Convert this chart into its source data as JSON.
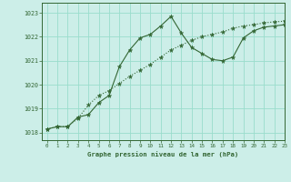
{
  "xlabel": "Graphe pression niveau de la mer (hPa)",
  "background_color": "#cceee8",
  "grid_color": "#99ddcc",
  "line_color": "#336633",
  "ylim": [
    1017.7,
    1023.4
  ],
  "xlim": [
    -0.5,
    23
  ],
  "yticks": [
    1018,
    1019,
    1020,
    1021,
    1022,
    1023
  ],
  "xticks": [
    0,
    1,
    2,
    3,
    4,
    5,
    6,
    7,
    8,
    9,
    10,
    11,
    12,
    13,
    14,
    15,
    16,
    17,
    18,
    19,
    20,
    21,
    22,
    23
  ],
  "line1_x": [
    0,
    1,
    2,
    3,
    4,
    5,
    6,
    7,
    8,
    9,
    10,
    11,
    12,
    13,
    14,
    15,
    16,
    17,
    18,
    19,
    20,
    21,
    22,
    23
  ],
  "line1_y": [
    1018.15,
    1018.25,
    1018.25,
    1018.6,
    1019.15,
    1019.55,
    1019.75,
    1020.05,
    1020.35,
    1020.6,
    1020.85,
    1021.15,
    1021.45,
    1021.65,
    1021.85,
    1022.0,
    1022.1,
    1022.2,
    1022.35,
    1022.45,
    1022.5,
    1022.58,
    1022.62,
    1022.65
  ],
  "line2_x": [
    0,
    1,
    2,
    3,
    4,
    5,
    6,
    7,
    8,
    9,
    10,
    11,
    12,
    13,
    14,
    15,
    16,
    17,
    18,
    19,
    20,
    21,
    22,
    23
  ],
  "line2_y": [
    1018.15,
    1018.25,
    1018.25,
    1018.65,
    1018.75,
    1019.25,
    1019.55,
    1020.75,
    1021.45,
    1021.95,
    1022.1,
    1022.45,
    1022.85,
    1022.15,
    1021.55,
    1021.3,
    1021.05,
    1021.0,
    1021.15,
    1021.95,
    1022.25,
    1022.4,
    1022.45,
    1022.5
  ]
}
